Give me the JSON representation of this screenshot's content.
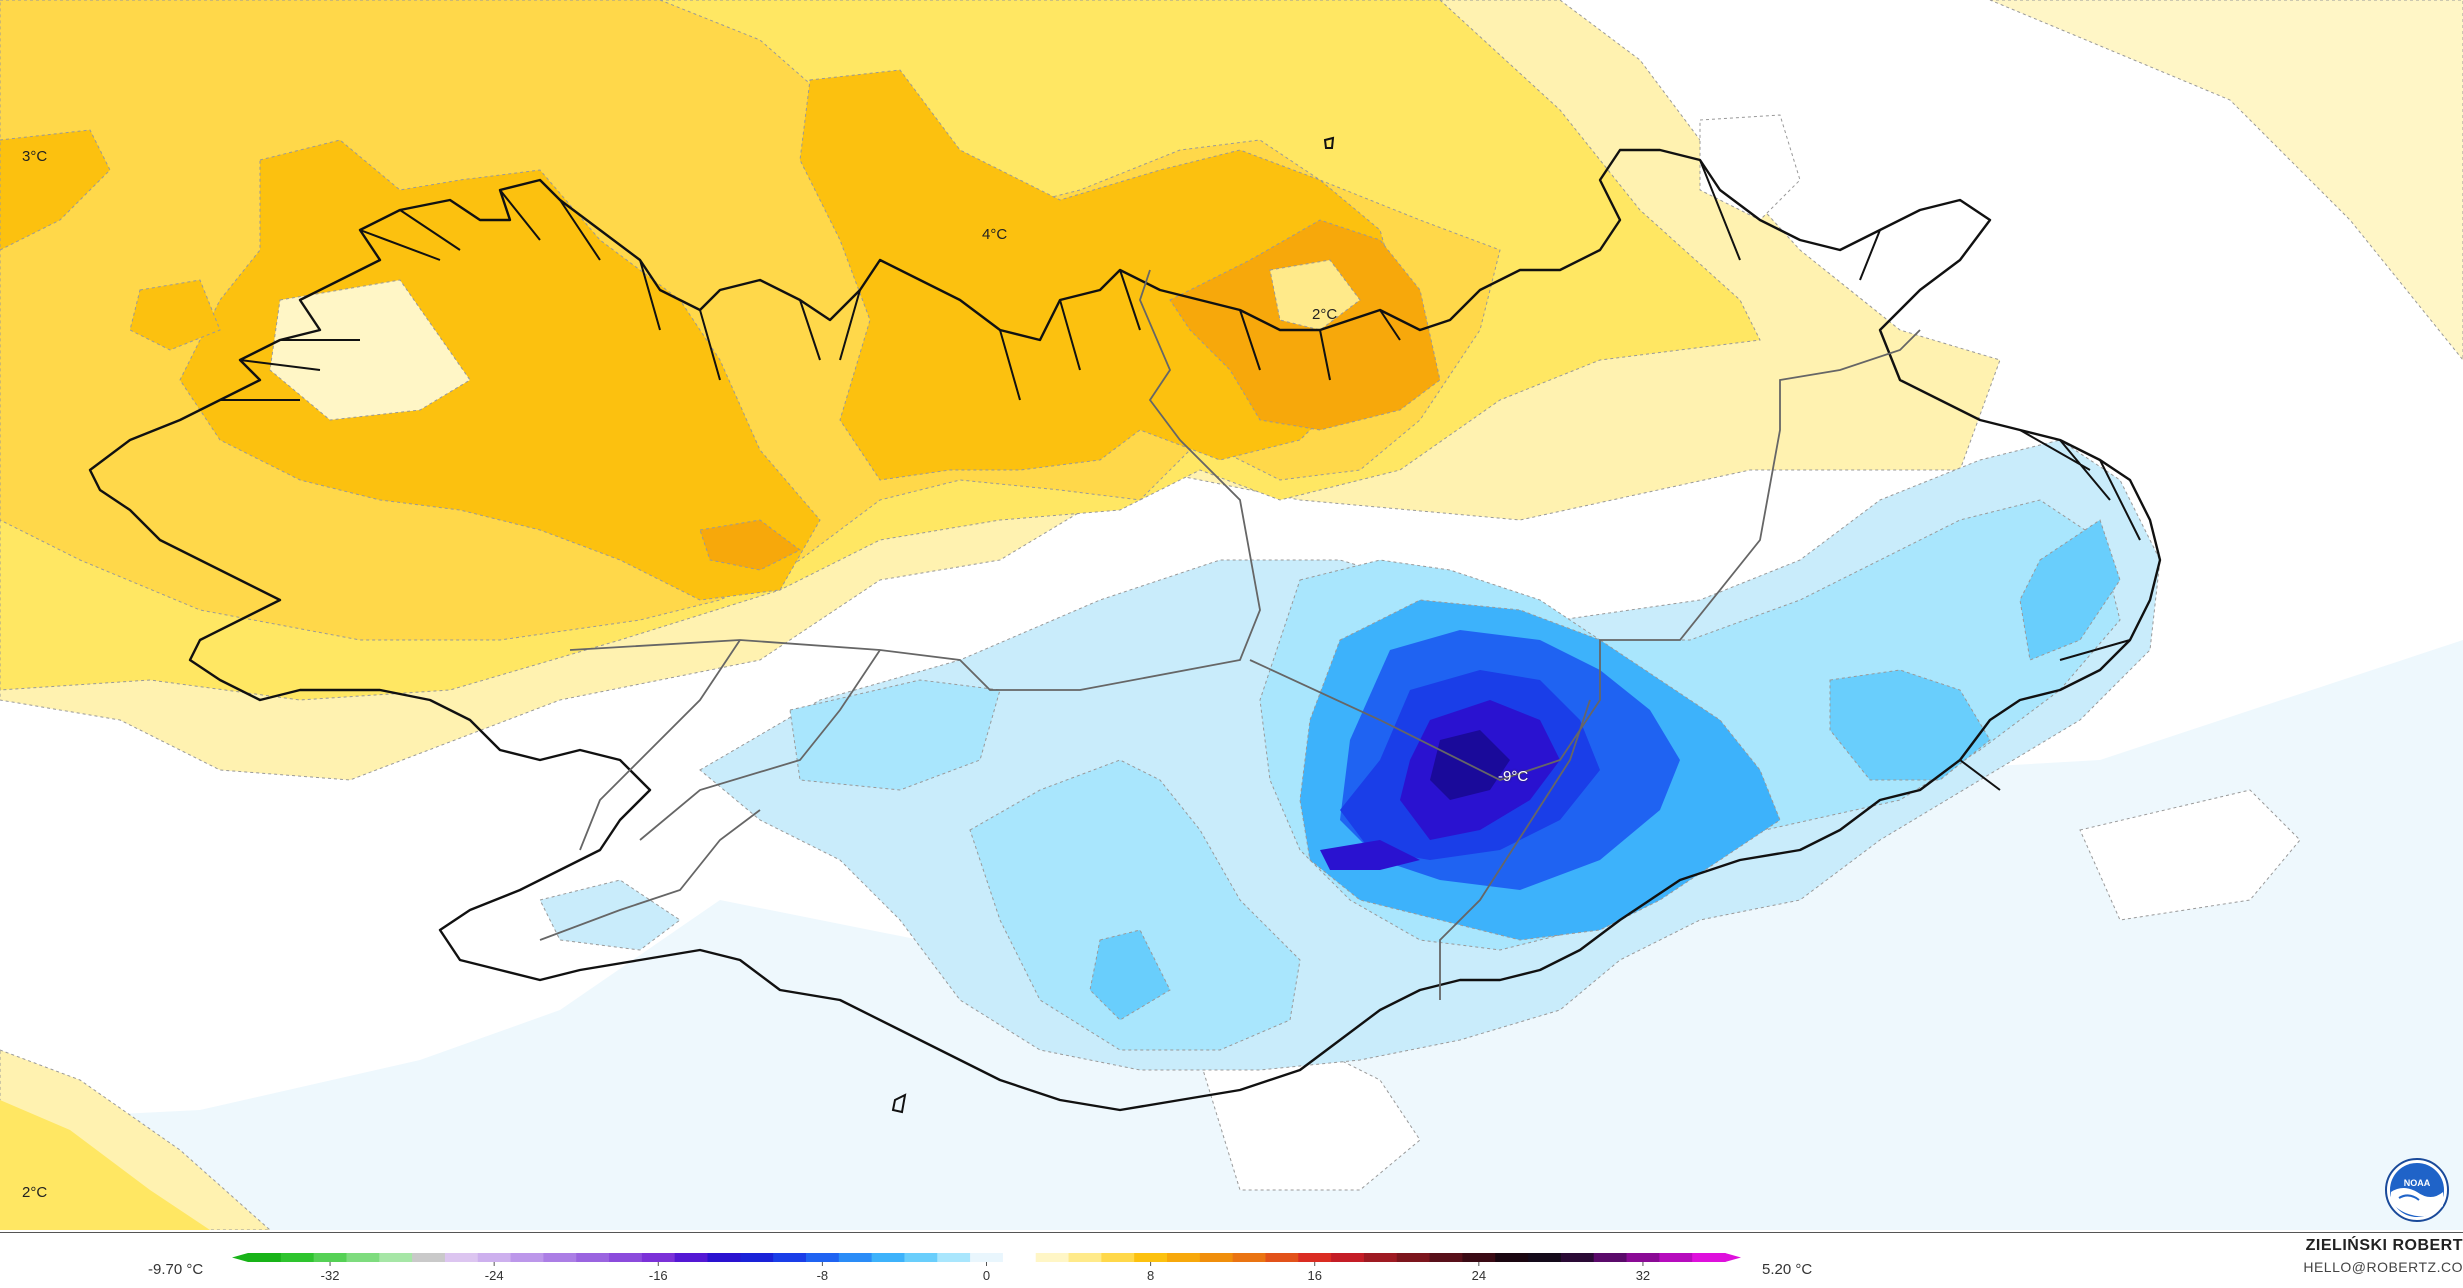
{
  "map": {
    "labels": [
      {
        "id": "label-west-top",
        "text": "3°C"
      },
      {
        "id": "label-north",
        "text": "4°C"
      },
      {
        "id": "label-northeast",
        "text": "2°C"
      },
      {
        "id": "label-center",
        "text": "-9°C"
      },
      {
        "id": "label-west-bottom",
        "text": "2°C"
      }
    ]
  },
  "legend": {
    "min_label": "-9.70 °C",
    "max_label": "5.20 °C",
    "ticks": [
      "-32",
      "-24",
      "-16",
      "-8",
      "0",
      "8",
      "16",
      "24",
      "32"
    ],
    "scale_min": -36,
    "scale_max": 36,
    "colors": [
      "#18b318",
      "#2ec42e",
      "#55d155",
      "#7edc7e",
      "#a6e6a6",
      "#c9c9c9",
      "#dcc5f0",
      "#cdb0ee",
      "#bc97ea",
      "#ab7ee5",
      "#9a64e0",
      "#8b4bdc",
      "#7b31d8",
      "#5418d4",
      "#2a12d0",
      "#1a22d8",
      "#1a3ee8",
      "#1f63f2",
      "#2a8cf7",
      "#3db2fb",
      "#69cefc",
      "#a9e6fd",
      "#e9f6fd",
      "#ffffff",
      "#fff6c6",
      "#ffea8a",
      "#ffd84a",
      "#fcc10f",
      "#f7a80b",
      "#f08e0b",
      "#ea7412",
      "#e2521a",
      "#da2c22",
      "#c41d26",
      "#9e1a22",
      "#7c151d",
      "#58101a",
      "#3a0a14",
      "#1a0610",
      "#140a1a",
      "#2a0a35",
      "#5a0a6a",
      "#8a0a95",
      "#b60cbd",
      "#de10dc"
    ]
  },
  "credits": {
    "author": "ZIELIŃSKI ROBERT",
    "email": "HELLO@ROBERTZ.CO"
  },
  "logo": {
    "text": "NOAA"
  }
}
